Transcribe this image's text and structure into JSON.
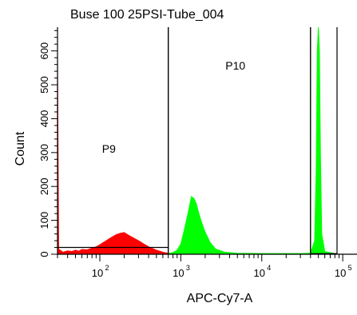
{
  "chart_data": {
    "type": "area",
    "title": "Buse 100 25PSI-Tube_004",
    "xlabel": "APC-Cy7-A",
    "ylabel": "Count",
    "x_scale": "log",
    "xlim": [
      30,
      150000
    ],
    "ylim": [
      0,
      670
    ],
    "y_ticks": [
      0,
      100,
      200,
      300,
      400,
      500,
      600
    ],
    "x_ticks": [
      {
        "value": 100,
        "label": "10",
        "exp": "2"
      },
      {
        "value": 1000,
        "label": "10",
        "exp": "3"
      },
      {
        "value": 10000,
        "label": "10",
        "exp": "4"
      },
      {
        "value": 100000,
        "label": "10",
        "exp": "5"
      }
    ],
    "colors": {
      "red_series": "#ff0000",
      "green_series": "#00ff00",
      "axis": "#000000"
    },
    "gates": [
      {
        "label": "P9",
        "x_range": [
          30,
          700
        ],
        "y_label_at": 300
      },
      {
        "label": "P10",
        "x_range": [
          700,
          40000
        ],
        "y_label_at": 545
      },
      {
        "label": "",
        "x_range": [
          40000,
          85000
        ]
      }
    ],
    "series": [
      {
        "color": "#ff0000",
        "points": [
          [
            30,
            580
          ],
          [
            31,
            15
          ],
          [
            35,
            6
          ],
          [
            40,
            10
          ],
          [
            45,
            8
          ],
          [
            50,
            12
          ],
          [
            55,
            9
          ],
          [
            60,
            14
          ],
          [
            70,
            13
          ],
          [
            80,
            18
          ],
          [
            90,
            22
          ],
          [
            100,
            28
          ],
          [
            120,
            40
          ],
          [
            140,
            50
          ],
          [
            160,
            58
          ],
          [
            180,
            62
          ],
          [
            200,
            64
          ],
          [
            230,
            55
          ],
          [
            260,
            48
          ],
          [
            300,
            40
          ],
          [
            350,
            30
          ],
          [
            400,
            22
          ],
          [
            500,
            12
          ],
          [
            600,
            6
          ],
          [
            700,
            3
          ]
        ]
      },
      {
        "color": "#00ff00",
        "points": [
          [
            700,
            2
          ],
          [
            800,
            5
          ],
          [
            900,
            12
          ],
          [
            1000,
            30
          ],
          [
            1100,
            70
          ],
          [
            1200,
            110
          ],
          [
            1300,
            150
          ],
          [
            1350,
            170
          ],
          [
            1450,
            165
          ],
          [
            1550,
            150
          ],
          [
            1650,
            125
          ],
          [
            1800,
            95
          ],
          [
            2000,
            65
          ],
          [
            2300,
            35
          ],
          [
            2700,
            15
          ],
          [
            3500,
            6
          ],
          [
            5000,
            3
          ],
          [
            10000,
            2
          ],
          [
            20000,
            2
          ],
          [
            30000,
            2
          ],
          [
            40000,
            3
          ],
          [
            45000,
            40
          ],
          [
            47000,
            250
          ],
          [
            48500,
            600
          ],
          [
            50000,
            670
          ],
          [
            51500,
            600
          ],
          [
            53000,
            300
          ],
          [
            55000,
            60
          ],
          [
            60000,
            8
          ],
          [
            80000,
            2
          ]
        ]
      }
    ],
    "p9_floor_y": 20
  }
}
